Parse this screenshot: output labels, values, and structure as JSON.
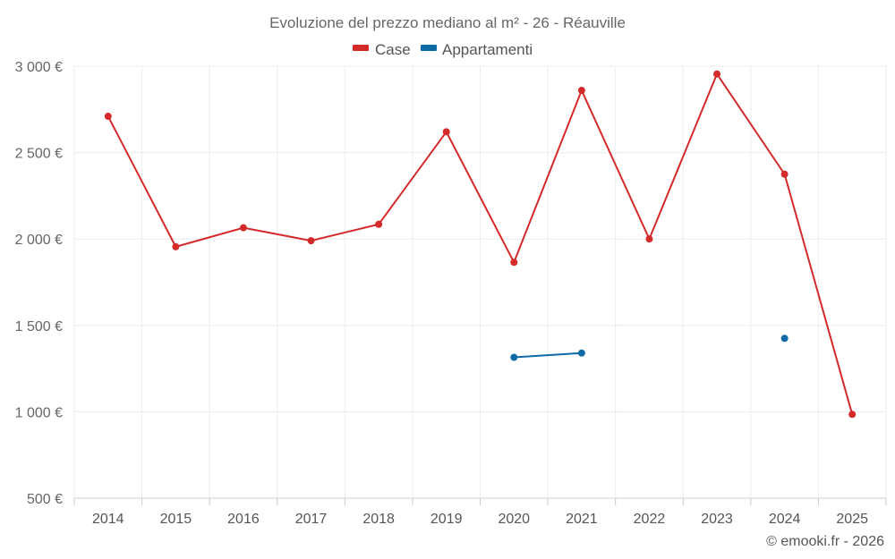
{
  "chart_data": {
    "type": "line",
    "title": "Evoluzione del prezzo mediano al m² - 26 - Réauville",
    "categories": [
      "2014",
      "2015",
      "2016",
      "2017",
      "2018",
      "2019",
      "2020",
      "2021",
      "2022",
      "2023",
      "2024",
      "2025"
    ],
    "ylim": [
      500,
      3000
    ],
    "yticks": [
      500,
      1000,
      1500,
      2000,
      2500,
      3000
    ],
    "ytick_labels": [
      "500 €",
      "1 000 €",
      "1 500 €",
      "2 000 €",
      "2 500 €",
      "3 000 €"
    ],
    "grid": true,
    "legend_position": "top-center",
    "series": [
      {
        "name": "Case",
        "color": "#d42a2a",
        "values": [
          2710,
          1955,
          2065,
          1990,
          2085,
          2620,
          1865,
          2860,
          2000,
          2955,
          2375,
          985
        ]
      },
      {
        "name": "Appartamenti",
        "color": "#0d6aa6",
        "values": [
          null,
          null,
          null,
          null,
          null,
          null,
          1315,
          1340,
          null,
          null,
          1425,
          null
        ]
      }
    ],
    "credit": "© emooki.fr - 2026"
  }
}
